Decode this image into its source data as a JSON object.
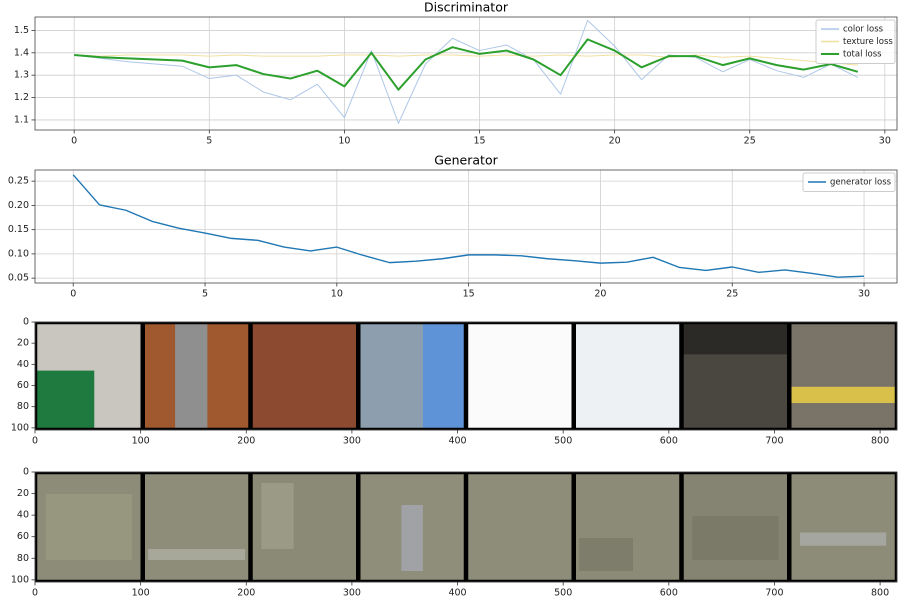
{
  "chart_data": [
    {
      "type": "line",
      "title": "Discriminator",
      "grid": true,
      "legend": "upper right",
      "x": [
        0,
        1,
        2,
        3,
        4,
        5,
        6,
        7,
        8,
        9,
        10,
        11,
        12,
        13,
        14,
        15,
        16,
        17,
        18,
        19,
        20,
        21,
        22,
        23,
        24,
        25,
        26,
        27,
        28,
        29
      ],
      "series": [
        {
          "name": "color loss",
          "color": "#aec7e8",
          "values": [
            1.39,
            1.375,
            1.36,
            1.35,
            1.34,
            1.285,
            1.3,
            1.225,
            1.19,
            1.26,
            1.11,
            1.41,
            1.085,
            1.35,
            1.465,
            1.41,
            1.435,
            1.37,
            1.215,
            1.545,
            1.43,
            1.28,
            1.39,
            1.38,
            1.315,
            1.37,
            1.32,
            1.29,
            1.35,
            1.29
          ]
        },
        {
          "name": "texture loss",
          "color": "#f0e0a0",
          "values": [
            1.39,
            1.385,
            1.39,
            1.39,
            1.39,
            1.385,
            1.39,
            1.385,
            1.385,
            1.385,
            1.39,
            1.39,
            1.385,
            1.39,
            1.39,
            1.385,
            1.39,
            1.385,
            1.39,
            1.385,
            1.39,
            1.39,
            1.38,
            1.39,
            1.38,
            1.385,
            1.375,
            1.365,
            1.355,
            1.345
          ]
        },
        {
          "name": "total loss",
          "color": "#2ca02c",
          "values": [
            1.39,
            1.38,
            1.375,
            1.37,
            1.365,
            1.335,
            1.345,
            1.305,
            1.285,
            1.32,
            1.25,
            1.4,
            1.235,
            1.37,
            1.425,
            1.395,
            1.41,
            1.37,
            1.3,
            1.46,
            1.41,
            1.335,
            1.385,
            1.385,
            1.345,
            1.375,
            1.345,
            1.325,
            1.35,
            1.315
          ]
        }
      ],
      "xlim": [
        -1.45,
        30.45
      ],
      "xticks": [
        0,
        5,
        10,
        15,
        20,
        25,
        30
      ],
      "ylim": [
        1.055,
        1.56
      ],
      "yticks": [
        1.1,
        1.2,
        1.3,
        1.4,
        1.5
      ]
    },
    {
      "type": "line",
      "title": "Generator",
      "grid": true,
      "legend": "upper right",
      "x": [
        0,
        1,
        2,
        3,
        4,
        5,
        6,
        7,
        8,
        9,
        10,
        11,
        12,
        13,
        14,
        15,
        16,
        17,
        18,
        19,
        20,
        21,
        22,
        23,
        24,
        25,
        26,
        27,
        28,
        29,
        30
      ],
      "series": [
        {
          "name": "generator loss",
          "color": "#1f77b4",
          "values": [
            0.263,
            0.201,
            0.19,
            0.167,
            0.153,
            0.143,
            0.132,
            0.128,
            0.114,
            0.106,
            0.114,
            0.097,
            0.082,
            0.085,
            0.09,
            0.098,
            0.098,
            0.096,
            0.09,
            0.086,
            0.081,
            0.083,
            0.093,
            0.072,
            0.066,
            0.073,
            0.062,
            0.067,
            0.06,
            0.052,
            0.054
          ]
        }
      ],
      "xlim": [
        -1.45,
        31.25
      ],
      "xticks": [
        0,
        5,
        10,
        15,
        20,
        25,
        30
      ],
      "ylim": [
        0.04,
        0.273
      ],
      "yticks": [
        0.05,
        {
          "value": 0.1,
          "label": "0.10"
        },
        0.15,
        {
          "value": 0.2,
          "label": "0.20"
        },
        0.25
      ]
    },
    {
      "type": "image",
      "xlim": [
        0,
        816
      ],
      "xticks": [
        0,
        100,
        200,
        300,
        400,
        500,
        600,
        700,
        800
      ],
      "ylim": [
        102,
        0
      ],
      "yticks": [
        0,
        20,
        40,
        60,
        80,
        100
      ]
    },
    {
      "type": "image",
      "xlim": [
        0,
        816
      ],
      "xticks": [
        0,
        100,
        200,
        300,
        400,
        500,
        600,
        700,
        800
      ],
      "ylim": [
        102,
        0
      ],
      "yticks": [
        0,
        20,
        40,
        60,
        80,
        100
      ]
    }
  ]
}
